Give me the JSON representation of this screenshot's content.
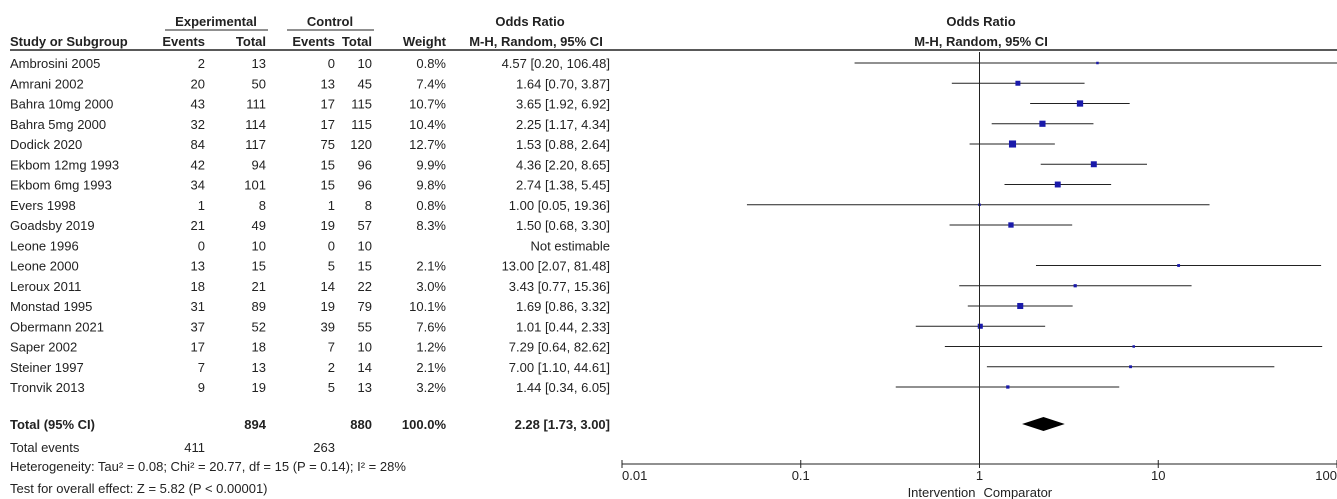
{
  "chart_data": {
    "type": "table",
    "subtype": "forest-plot",
    "headers": {
      "group_experimental": "Experimental",
      "group_control": "Control",
      "group_odds_table": "Odds Ratio",
      "group_odds_plot": "Odds Ratio",
      "study": "Study or Subgroup",
      "events": "Events",
      "total": "Total",
      "events2": "Events",
      "total2": "Total",
      "weight": "Weight",
      "method_table": "M-H, Random, 95% CI",
      "method_plot": "M-H, Random, 95% CI"
    },
    "studies": [
      {
        "name": "Ambrosini 2005",
        "e_events": "2",
        "e_total": "13",
        "c_events": "0",
        "c_total": "10",
        "weight": "0.8%",
        "ci_text": "4.57 [0.20, 106.48]",
        "or": 4.57,
        "lo": 0.2,
        "hi": 106.48
      },
      {
        "name": "Amrani 2002",
        "e_events": "20",
        "e_total": "50",
        "c_events": "13",
        "c_total": "45",
        "weight": "7.4%",
        "ci_text": "1.64 [0.70, 3.87]",
        "or": 1.64,
        "lo": 0.7,
        "hi": 3.87
      },
      {
        "name": "Bahra 10mg 2000",
        "e_events": "43",
        "e_total": "111",
        "c_events": "17",
        "c_total": "115",
        "weight": "10.7%",
        "ci_text": "3.65 [1.92, 6.92]",
        "or": 3.65,
        "lo": 1.92,
        "hi": 6.92
      },
      {
        "name": "Bahra 5mg 2000",
        "e_events": "32",
        "e_total": "114",
        "c_events": "17",
        "c_total": "115",
        "weight": "10.4%",
        "ci_text": "2.25 [1.17, 4.34]",
        "or": 2.25,
        "lo": 1.17,
        "hi": 4.34
      },
      {
        "name": "Dodick 2020",
        "e_events": "84",
        "e_total": "117",
        "c_events": "75",
        "c_total": "120",
        "weight": "12.7%",
        "ci_text": "1.53 [0.88, 2.64]",
        "or": 1.53,
        "lo": 0.88,
        "hi": 2.64
      },
      {
        "name": "Ekbom 12mg 1993",
        "e_events": "42",
        "e_total": "94",
        "c_events": "15",
        "c_total": "96",
        "weight": "9.9%",
        "ci_text": "4.36 [2.20, 8.65]",
        "or": 4.36,
        "lo": 2.2,
        "hi": 8.65
      },
      {
        "name": "Ekbom 6mg 1993",
        "e_events": "34",
        "e_total": "101",
        "c_events": "15",
        "c_total": "96",
        "weight": "9.8%",
        "ci_text": "2.74 [1.38, 5.45]",
        "or": 2.74,
        "lo": 1.38,
        "hi": 5.45
      },
      {
        "name": "Evers 1998",
        "e_events": "1",
        "e_total": "8",
        "c_events": "1",
        "c_total": "8",
        "weight": "0.8%",
        "ci_text": "1.00 [0.05, 19.36]",
        "or": 1.0,
        "lo": 0.05,
        "hi": 19.36
      },
      {
        "name": "Goadsby 2019",
        "e_events": "21",
        "e_total": "49",
        "c_events": "19",
        "c_total": "57",
        "weight": "8.3%",
        "ci_text": "1.50 [0.68, 3.30]",
        "or": 1.5,
        "lo": 0.68,
        "hi": 3.3
      },
      {
        "name": "Leone 1996",
        "e_events": "0",
        "e_total": "10",
        "c_events": "0",
        "c_total": "10",
        "weight": "",
        "ci_text": "Not estimable",
        "or": null,
        "lo": null,
        "hi": null
      },
      {
        "name": "Leone 2000",
        "e_events": "13",
        "e_total": "15",
        "c_events": "5",
        "c_total": "15",
        "weight": "2.1%",
        "ci_text": "13.00 [2.07, 81.48]",
        "or": 13.0,
        "lo": 2.07,
        "hi": 81.48
      },
      {
        "name": "Leroux 2011",
        "e_events": "18",
        "e_total": "21",
        "c_events": "14",
        "c_total": "22",
        "weight": "3.0%",
        "ci_text": "3.43 [0.77, 15.36]",
        "or": 3.43,
        "lo": 0.77,
        "hi": 15.36
      },
      {
        "name": "Monstad 1995",
        "e_events": "31",
        "e_total": "89",
        "c_events": "19",
        "c_total": "79",
        "weight": "10.1%",
        "ci_text": "1.69 [0.86, 3.32]",
        "or": 1.69,
        "lo": 0.86,
        "hi": 3.32
      },
      {
        "name": "Obermann 2021",
        "e_events": "37",
        "e_total": "52",
        "c_events": "39",
        "c_total": "55",
        "weight": "7.6%",
        "ci_text": "1.01 [0.44, 2.33]",
        "or": 1.01,
        "lo": 0.44,
        "hi": 2.33
      },
      {
        "name": "Saper 2002",
        "e_events": "17",
        "e_total": "18",
        "c_events": "7",
        "c_total": "10",
        "weight": "1.2%",
        "ci_text": "7.29 [0.64, 82.62]",
        "or": 7.29,
        "lo": 0.64,
        "hi": 82.62
      },
      {
        "name": "Steiner 1997",
        "e_events": "7",
        "e_total": "13",
        "c_events": "2",
        "c_total": "14",
        "weight": "2.1%",
        "ci_text": "7.00 [1.10, 44.61]",
        "or": 7.0,
        "lo": 1.1,
        "hi": 44.61
      },
      {
        "name": "Tronvik 2013",
        "e_events": "9",
        "e_total": "19",
        "c_events": "5",
        "c_total": "13",
        "weight": "3.2%",
        "ci_text": "1.44 [0.34, 6.05]",
        "or": 1.44,
        "lo": 0.34,
        "hi": 6.05
      }
    ],
    "total": {
      "name": "Total (95% CI)",
      "e_total": "894",
      "c_total": "880",
      "weight": "100.0%",
      "ci_text": "2.28 [1.73, 3.00]",
      "or": 2.28,
      "lo": 1.73,
      "hi": 3.0
    },
    "total_events": {
      "label": "Total events",
      "experimental": "411",
      "control": "263"
    },
    "heterogeneity": "Heterogeneity: Tau² = 0.08; Chi² = 20.77, df = 15 (P = 0.14); I² = 28%",
    "overall_effect": "Test for overall effect: Z = 5.82 (P < 0.00001)",
    "x_axis": {
      "scale": "log",
      "ticks": [
        "0.01",
        "0.1",
        "1",
        "10",
        "100"
      ],
      "tick_values": [
        0.01,
        0.1,
        1,
        10,
        100
      ],
      "xlim": [
        0.01,
        100
      ]
    },
    "axis_caption": {
      "left": "Intervention",
      "right": "Comparator"
    },
    "colors": {
      "marker": "#1a1aaa",
      "text": "#222222",
      "line": "#222222"
    }
  }
}
